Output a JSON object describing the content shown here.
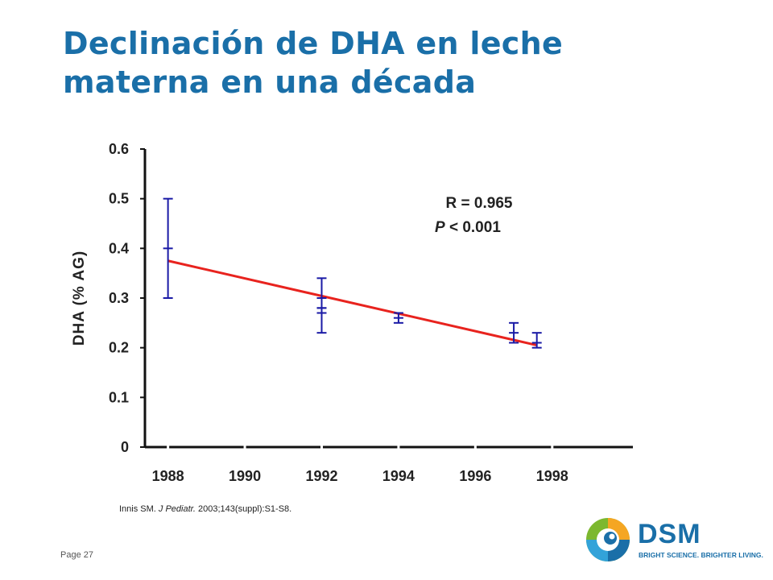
{
  "slide": {
    "title_line1": "Declinación de DHA en leche",
    "title_line2": "materna en una década",
    "reference_author": "Innis SM. ",
    "reference_journal": "J Pediatr.",
    "reference_rest": " 2003;143(suppl):S1-S8.",
    "page_label": "Page 27"
  },
  "logo": {
    "wordmark": "DSM",
    "tagline": "BRIGHT SCIENCE. BRIGHTER LIVING.",
    "brand_color": "#1a6fa8"
  },
  "chart_data": {
    "type": "scatter",
    "title": "",
    "xlabel": "",
    "ylabel": "DHA (% AG)",
    "ylim": [
      0,
      0.6
    ],
    "xlim": [
      1987.4,
      2000.1
    ],
    "x_ticks": [
      "1988",
      "1990",
      "1992",
      "1994",
      "1996",
      "1998"
    ],
    "y_ticks": [
      "0",
      "0.1",
      "0.2",
      "0.3",
      "0.4",
      "0.5",
      "0.6"
    ],
    "annotation_r": "R = 0.965",
    "annotation_p_symbol": "P",
    "annotation_p_rest": " < 0.001",
    "points": [
      {
        "x": 1988.0,
        "y": 0.4,
        "low": 0.3,
        "high": 0.5
      },
      {
        "x": 1992.0,
        "y": 0.3,
        "low": 0.28,
        "high": 0.34
      },
      {
        "x": 1992.0,
        "y": 0.27,
        "low": 0.23,
        "high": 0.28
      },
      {
        "x": 1994.0,
        "y": 0.26,
        "low": 0.25,
        "high": 0.27
      },
      {
        "x": 1997.0,
        "y": 0.23,
        "low": 0.21,
        "high": 0.25
      },
      {
        "x": 1997.6,
        "y": 0.21,
        "low": 0.2,
        "high": 0.23
      }
    ],
    "trend_line": {
      "x": [
        1988.0,
        1997.6
      ],
      "y": [
        0.375,
        0.205
      ]
    },
    "point_color": "#1a1aa6",
    "trend_color": "#e8231e",
    "axis_color": "#111111",
    "grid": false,
    "legend": "none"
  }
}
